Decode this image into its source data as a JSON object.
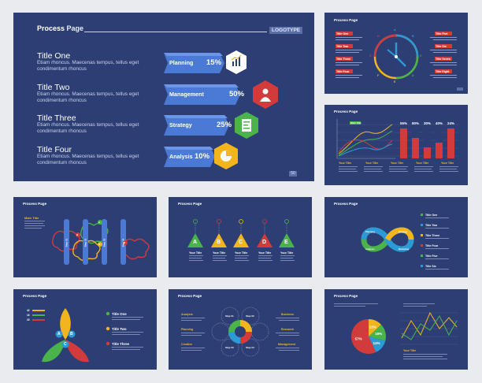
{
  "header": {
    "process": "Process",
    "page": "Page",
    "logo": "LOGOTYPE",
    "page_number": "50"
  },
  "main_slide": {
    "items": [
      {
        "title": "Title One",
        "desc": "Etiam rhoncus. Maecenas tempus, tellus eget condimentum rhoncus"
      },
      {
        "title": "Title Two",
        "desc": "Etiam rhoncus. Maecenas tempus, tellus eget condimentum rhoncus"
      },
      {
        "title": "Title Three",
        "desc": "Etiam rhoncus. Maecenas tempus, tellus eget condimentum rhoncus"
      },
      {
        "title": "Title Four",
        "desc": "Etiam rhoncus. Maecenas tempus, tellus eget condimentum rhoncus"
      }
    ],
    "steps": [
      {
        "label": "Planning",
        "pct": "15%",
        "color": "#ffffff",
        "pct_color": "#2c3e73",
        "icon": "chart-icon"
      },
      {
        "label": "Management",
        "pct": "50%",
        "color": "#d23b3b",
        "pct_color": "#ffffff",
        "icon": "person-icon"
      },
      {
        "label": "Strategy",
        "pct": "25%",
        "color": "#4ab34a",
        "pct_color": "#ffffff",
        "icon": "document-icon"
      },
      {
        "label": "Analysis",
        "pct": "10%",
        "color": "#f3b51d",
        "pct_color": "#ffffff",
        "icon": "pie-icon"
      }
    ]
  },
  "clock_slide": {
    "letters": [
      "A",
      "B",
      "C",
      "D",
      "E",
      "F",
      "G",
      "H"
    ],
    "left_titles": [
      "Title One",
      "Title Two",
      "Title Three",
      "Title Four"
    ],
    "right_titles": [
      "Title Five",
      "Title Six",
      "Title Seven",
      "Title Eight"
    ]
  },
  "chart_slide": {
    "tag": "Main Title",
    "bar_labels": [
      "55%",
      "80%",
      "30%",
      "40%",
      "24%"
    ],
    "col_titles": [
      "Your Title",
      "Your Title",
      "Your Title",
      "Your Title",
      "Your Title"
    ]
  },
  "cloud_slide": {
    "main_title": "Main Title",
    "steps": [
      "Step 01",
      "Step 02",
      "Step 03",
      "Step 04"
    ],
    "letters": [
      "A",
      "B",
      "C",
      "D"
    ]
  },
  "triangle_slide": {
    "letters": [
      "A",
      "B",
      "C",
      "D",
      "E"
    ],
    "col_titles": [
      "Your Title",
      "Your Title",
      "Your Title",
      "Your Title",
      "Your Title"
    ]
  },
  "infinity_slide": {
    "titles": [
      "Title One",
      "Title Two",
      "Title Three",
      "Title Four",
      "Title Five",
      "Title Six"
    ],
    "inner_labels": [
      "Planning",
      "Strategy",
      "Analysis",
      "Marketing"
    ]
  },
  "petal_slide": {
    "letters": [
      "A",
      "B",
      "C"
    ],
    "legend_values": [
      "42",
      "16",
      "29"
    ],
    "titles": [
      "Title One",
      "Title Two",
      "Title Three"
    ]
  },
  "wheel_slide": {
    "left_titles": [
      "Analysis",
      "Planning",
      "Creative"
    ],
    "right_titles": [
      "Business",
      "Research",
      "Management"
    ],
    "steps": [
      "Step 01",
      "Step 02",
      "Step 03",
      "Step 04"
    ]
  },
  "pie_slide": {
    "slices": [
      {
        "label": "13%",
        "value": 13,
        "color": "#f3b51d"
      },
      {
        "label": "16%",
        "value": 16,
        "color": "#4ab34a"
      },
      {
        "label": "14%",
        "value": 14,
        "color": "#2c9ad6"
      },
      {
        "label": "57%",
        "value": 57,
        "color": "#d23b3b"
      }
    ],
    "tag": "Your Title"
  }
}
